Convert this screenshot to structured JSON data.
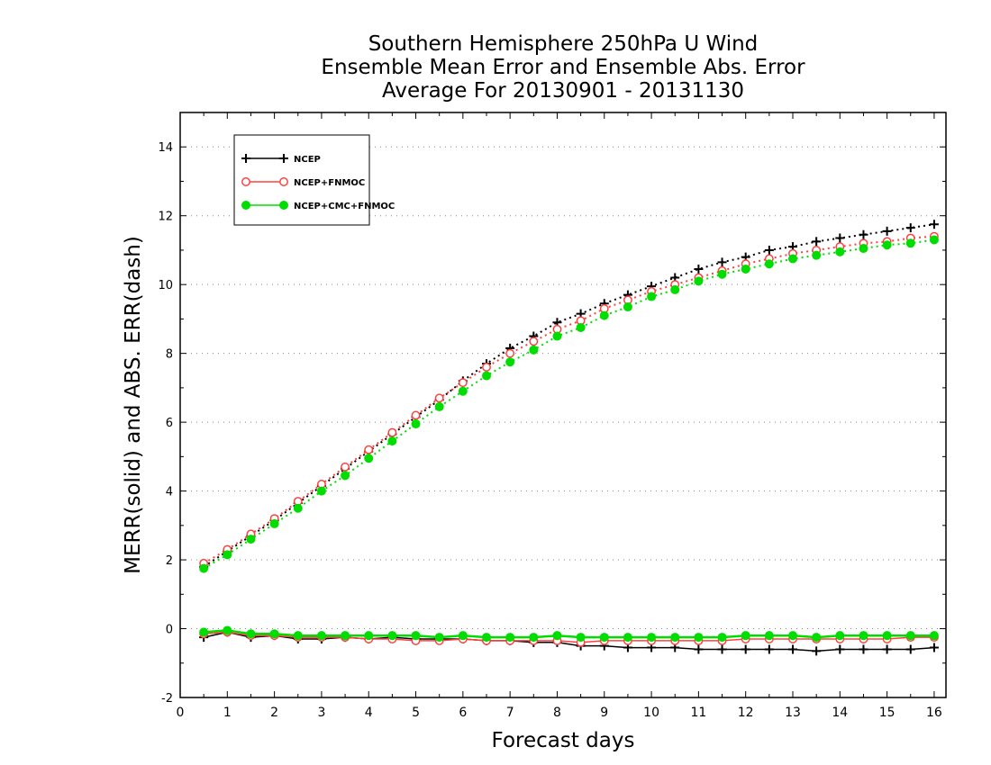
{
  "chart_data": {
    "type": "line",
    "title": [
      "Southern Hemisphere 250hPa U Wind",
      "Ensemble Mean Error and Ensemble Abs. Error",
      "Average For 20130901 - 20131130"
    ],
    "xlabel": "Forecast days",
    "ylabel": "MERR(solid) and ABS. ERR(dash)",
    "xlim": [
      0,
      16.25
    ],
    "ylim": [
      -2,
      15
    ],
    "xticks": [
      "0",
      "1",
      "2",
      "3",
      "4",
      "5",
      "6",
      "7",
      "8",
      "9",
      "10",
      "11",
      "12",
      "13",
      "14",
      "15",
      "16"
    ],
    "yticks": [
      "-2",
      "0",
      "2",
      "4",
      "6",
      "8",
      "10",
      "12",
      "14"
    ],
    "grid": "horizontal dotted",
    "legend_position": "top-left",
    "x": [
      0.5,
      1,
      1.5,
      2,
      2.5,
      3,
      3.5,
      4,
      4.5,
      5,
      5.5,
      6,
      6.5,
      7,
      7.5,
      8,
      8.5,
      9,
      9.5,
      10,
      10.5,
      11,
      11.5,
      12,
      12.5,
      13,
      13.5,
      14,
      14.5,
      15,
      15.5,
      16
    ],
    "series": [
      {
        "name": "NCEP",
        "color": "#000000",
        "marker": "plus",
        "abs_err": [
          1.8,
          2.25,
          2.7,
          3.15,
          3.65,
          4.15,
          4.65,
          5.15,
          5.65,
          6.15,
          6.65,
          7.2,
          7.7,
          8.15,
          8.5,
          8.9,
          9.15,
          9.45,
          9.7,
          9.95,
          10.2,
          10.45,
          10.65,
          10.8,
          11.0,
          11.1,
          11.25,
          11.35,
          11.45,
          11.55,
          11.65,
          11.75
        ],
        "mean_err": [
          -0.25,
          -0.1,
          -0.25,
          -0.2,
          -0.3,
          -0.3,
          -0.25,
          -0.3,
          -0.25,
          -0.3,
          -0.3,
          -0.3,
          -0.35,
          -0.35,
          -0.4,
          -0.4,
          -0.5,
          -0.5,
          -0.55,
          -0.55,
          -0.55,
          -0.6,
          -0.6,
          -0.6,
          -0.6,
          -0.6,
          -0.65,
          -0.6,
          -0.6,
          -0.6,
          -0.6,
          -0.55
        ]
      },
      {
        "name": "NCEP+FNMOC",
        "color": "#ff4040",
        "marker": "circle-open",
        "abs_err": [
          1.9,
          2.3,
          2.75,
          3.2,
          3.7,
          4.2,
          4.7,
          5.2,
          5.7,
          6.2,
          6.7,
          7.15,
          7.6,
          8.0,
          8.35,
          8.7,
          8.95,
          9.3,
          9.55,
          9.8,
          10.0,
          10.2,
          10.4,
          10.6,
          10.75,
          10.9,
          11.0,
          11.1,
          11.2,
          11.25,
          11.35,
          11.4
        ],
        "mean_err": [
          -0.15,
          -0.1,
          -0.2,
          -0.2,
          -0.25,
          -0.25,
          -0.25,
          -0.3,
          -0.3,
          -0.35,
          -0.35,
          -0.3,
          -0.35,
          -0.35,
          -0.35,
          -0.35,
          -0.4,
          -0.35,
          -0.35,
          -0.35,
          -0.35,
          -0.35,
          -0.35,
          -0.3,
          -0.3,
          -0.3,
          -0.3,
          -0.3,
          -0.3,
          -0.3,
          -0.25,
          -0.25
        ]
      },
      {
        "name": "NCEP+CMC+FNMOC",
        "color": "#00dd00",
        "marker": "circle-filled",
        "abs_err": [
          1.75,
          2.15,
          2.6,
          3.05,
          3.5,
          4.0,
          4.45,
          4.95,
          5.45,
          5.95,
          6.45,
          6.9,
          7.35,
          7.75,
          8.1,
          8.5,
          8.75,
          9.1,
          9.35,
          9.65,
          9.85,
          10.1,
          10.3,
          10.45,
          10.6,
          10.75,
          10.85,
          10.95,
          11.05,
          11.15,
          11.2,
          11.3
        ],
        "mean_err": [
          -0.1,
          -0.05,
          -0.15,
          -0.15,
          -0.2,
          -0.2,
          -0.2,
          -0.2,
          -0.2,
          -0.2,
          -0.25,
          -0.2,
          -0.25,
          -0.25,
          -0.25,
          -0.2,
          -0.25,
          -0.25,
          -0.25,
          -0.25,
          -0.25,
          -0.25,
          -0.25,
          -0.2,
          -0.2,
          -0.2,
          -0.25,
          -0.2,
          -0.2,
          -0.2,
          -0.2,
          -0.2
        ]
      }
    ]
  }
}
